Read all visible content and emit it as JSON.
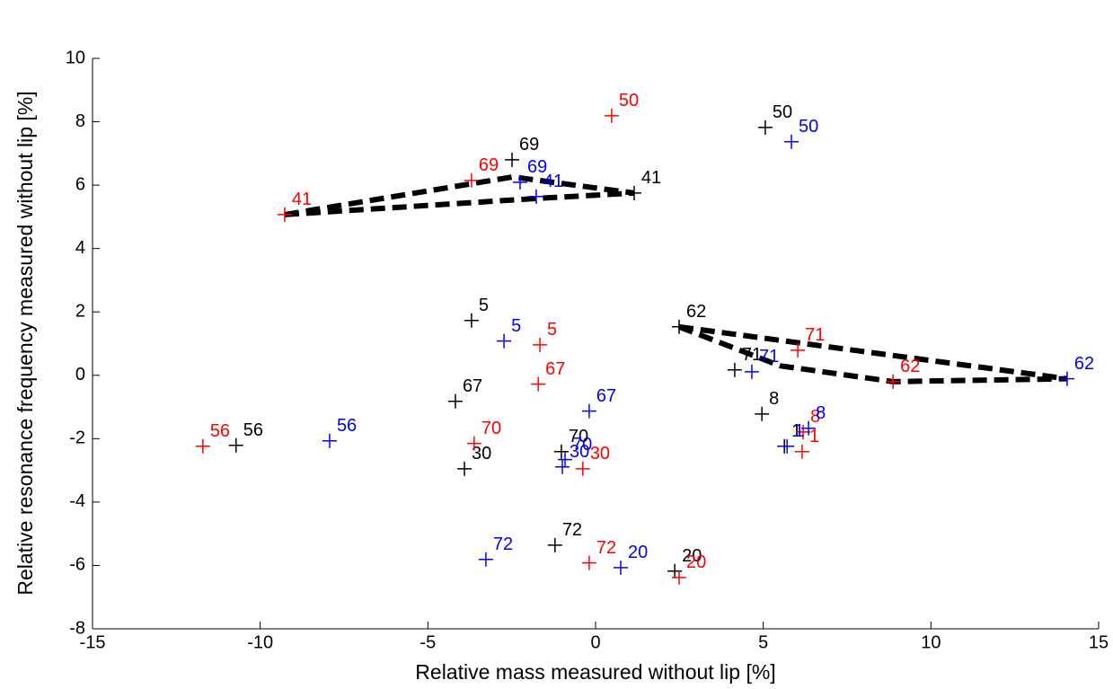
{
  "chart_data": {
    "type": "scatter",
    "x_label": "Relative mass measured without lip [%]",
    "y_label": "Relative resonance frequency measured without lip [%]",
    "xlim": [
      -15,
      15
    ],
    "xticks": [
      -15,
      -10,
      -5,
      0,
      5,
      10,
      15
    ],
    "ylim": [
      -8,
      10
    ],
    "yticks": [
      -8,
      -6,
      -4,
      -2,
      0,
      2,
      4,
      6,
      8,
      10
    ],
    "series": [
      {
        "color": "#000000",
        "labels": [
          "69",
          "50",
          "41",
          "5",
          "62",
          "71",
          "67",
          "8",
          "56",
          "1",
          "70",
          "30",
          "72",
          "20"
        ],
        "x": [
          -2.49,
          5.06,
          1.15,
          -3.7,
          2.49,
          4.15,
          -4.18,
          4.96,
          -10.72,
          5.63,
          -1.02,
          -3.91,
          -1.21,
          2.36
        ],
        "values": [
          6.8,
          7.82,
          5.75,
          1.73,
          1.53,
          0.17,
          -0.82,
          -1.22,
          -2.21,
          -2.24,
          -2.41,
          -2.95,
          -5.36,
          -6.18
        ]
      },
      {
        "color": "#ff0000",
        "labels": [
          "50",
          "41",
          "69",
          "5",
          "71",
          "62",
          "67",
          "8",
          "56",
          "70",
          "1",
          "30",
          "72",
          "20"
        ],
        "x": [
          0.48,
          -9.27,
          -3.7,
          -1.66,
          6.03,
          8.87,
          -1.71,
          6.19,
          -11.71,
          -3.62,
          6.16,
          -0.38,
          -0.19,
          2.49
        ],
        "values": [
          8.19,
          5.07,
          6.15,
          0.96,
          0.79,
          -0.2,
          -0.28,
          -1.79,
          -2.24,
          -2.15,
          -2.41,
          -2.95,
          -5.92,
          -6.38
        ]
      },
      {
        "color": "#0000ff",
        "labels": [
          "50",
          "69",
          "41",
          "5",
          "71",
          "62",
          "67",
          "8",
          "56",
          "1",
          "70",
          "30",
          "72",
          "20"
        ],
        "x": [
          5.84,
          -2.25,
          -1.77,
          -2.73,
          4.66,
          14.06,
          -0.19,
          6.35,
          -7.93,
          5.71,
          -0.91,
          -0.99,
          -3.27,
          0.75
        ],
        "values": [
          7.37,
          6.09,
          5.64,
          1.08,
          0.11,
          -0.11,
          -1.13,
          -1.67,
          -2.07,
          -2.24,
          -2.66,
          -2.89,
          -5.81,
          -6.07
        ]
      }
    ],
    "connectors": [
      {
        "x": [
          -9.27,
          -2.47,
          1.15
        ],
        "values": [
          5.07,
          6.26,
          5.75
        ]
      },
      {
        "x": [
          -9.27,
          -1.77,
          1.15
        ],
        "values": [
          5.07,
          5.58,
          5.75
        ]
      },
      {
        "x": [
          2.49,
          14.06
        ],
        "values": [
          1.53,
          -0.11
        ]
      },
      {
        "x": [
          2.49,
          5.5,
          8.87,
          14.06
        ],
        "values": [
          1.53,
          0.3,
          -0.2,
          -0.11
        ]
      }
    ]
  }
}
